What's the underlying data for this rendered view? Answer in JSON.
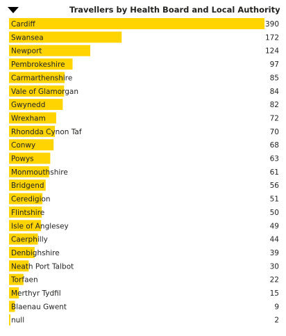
{
  "chart_data": {
    "type": "bar",
    "orientation": "horizontal",
    "title": "Travellers by Health Board and Local Authority",
    "categories": [
      "Cardiff",
      "Swansea",
      "Newport",
      "Pembrokeshire",
      "Carmarthenshire",
      "Vale of Glamorgan",
      "Gwynedd",
      "Wrexham",
      "Rhondda Cynon Taf",
      "Conwy",
      "Powys",
      "Monmouthshire",
      "Bridgend",
      "Ceredigion",
      "Flintshire",
      "Isle of Anglesey",
      "Caerphilly",
      "Denbighshire",
      "Neath Port Talbot",
      "Torfaen",
      "Merthyr Tydfil",
      "Blaenau Gwent",
      "null"
    ],
    "values": [
      390,
      172,
      124,
      97,
      85,
      84,
      82,
      72,
      70,
      68,
      63,
      61,
      56,
      51,
      50,
      49,
      44,
      39,
      30,
      22,
      15,
      9,
      2
    ],
    "xlim": [
      0,
      390
    ],
    "bar_color": "#FFD400",
    "data_labels": true,
    "legend": "none",
    "grid": false
  },
  "icons": {
    "collapse": "caret-down-icon"
  }
}
